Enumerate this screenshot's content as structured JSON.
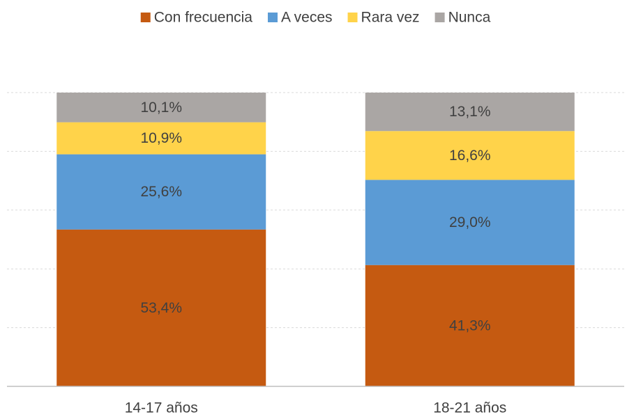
{
  "chart_data": {
    "type": "stacked_bar",
    "categories": [
      "14-17 años",
      "18-21 años"
    ],
    "series": [
      {
        "name": "Con frecuencia",
        "color": "#c55a11",
        "values": [
          53.4,
          41.3
        ],
        "value_labels": [
          "53,4%",
          "41,3%"
        ]
      },
      {
        "name": "A veces",
        "color": "#5b9bd5",
        "values": [
          25.6,
          29.0
        ],
        "value_labels": [
          "25,6%",
          "29,0%"
        ]
      },
      {
        "name": "Rara vez",
        "color": "#ffd34a",
        "values": [
          10.9,
          16.6
        ],
        "value_labels": [
          "10,9%",
          "16,6%"
        ]
      },
      {
        "name": "Nunca",
        "color": "#aaa6a4",
        "values": [
          10.1,
          13.1
        ],
        "value_labels": [
          "10,1%",
          "13,1%"
        ]
      }
    ],
    "ylim": [
      0,
      100
    ],
    "yticks": [
      0,
      20,
      40,
      60,
      80,
      100
    ],
    "grid": true,
    "legend": "top"
  }
}
